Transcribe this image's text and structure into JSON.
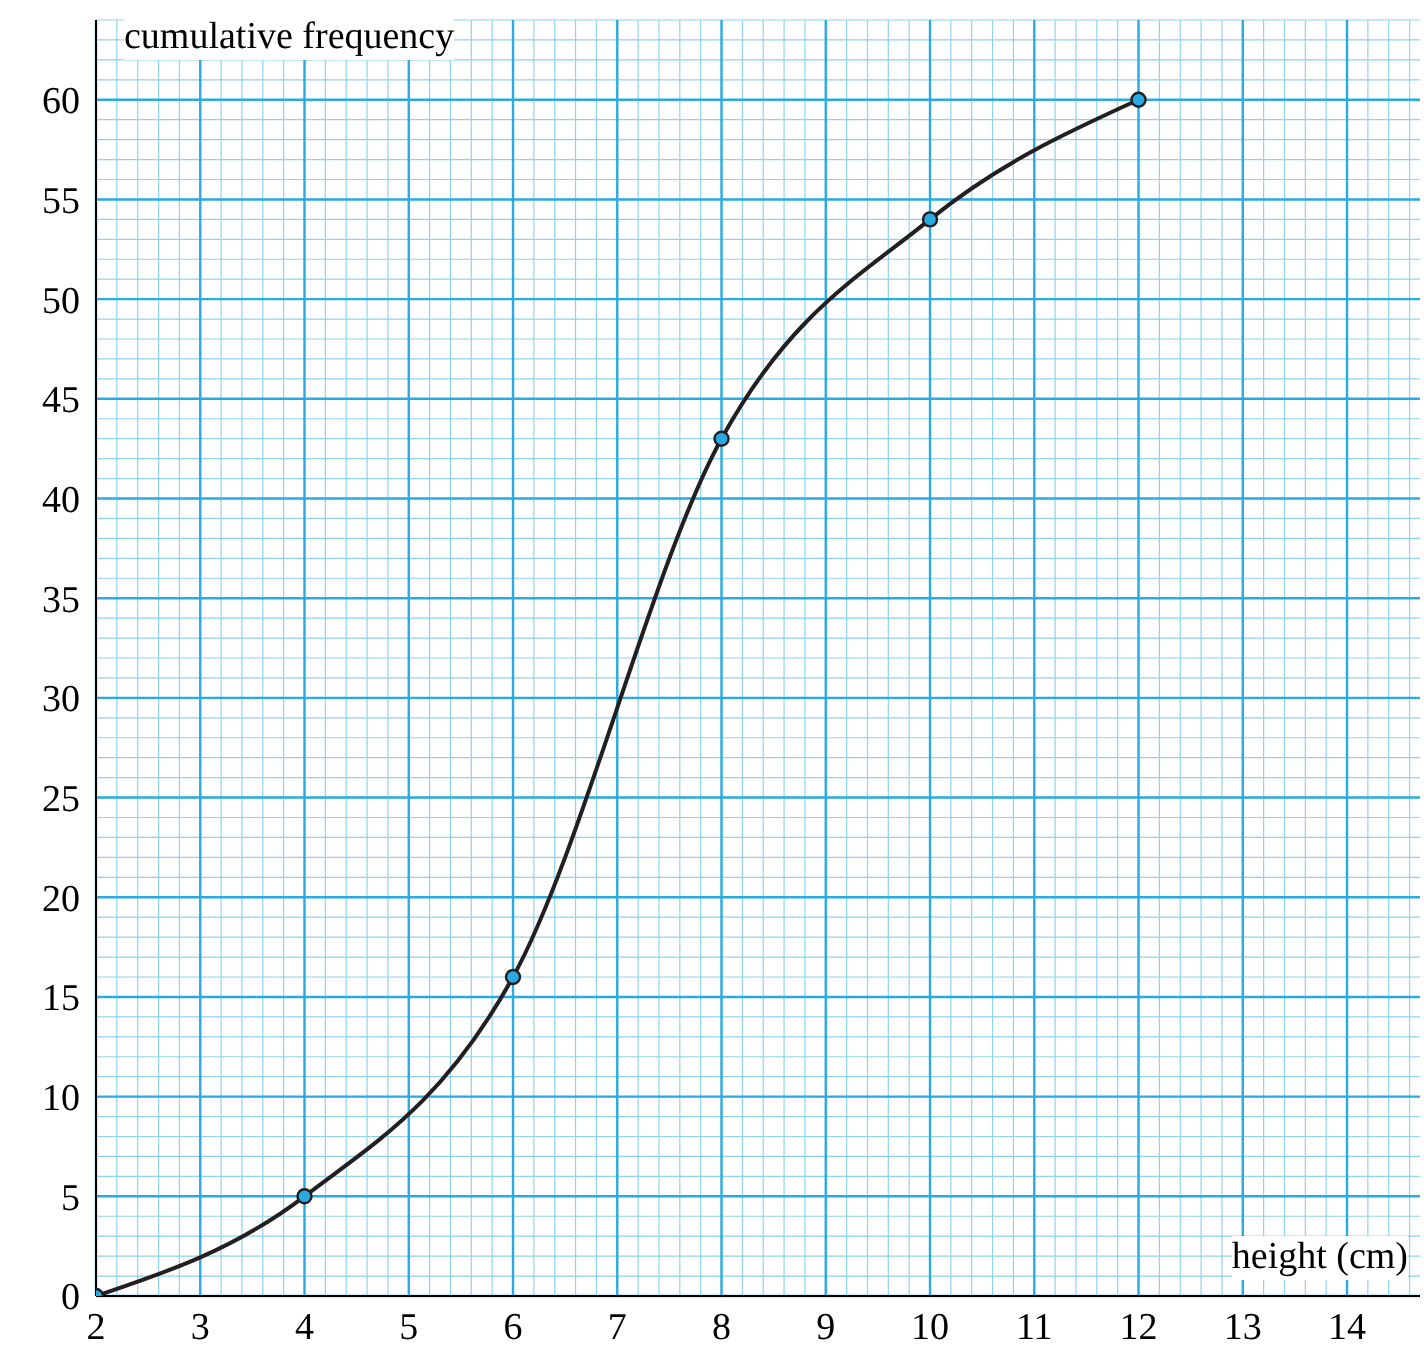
{
  "chart_data": {
    "type": "line",
    "xlabel": "height (cm)",
    "ylabel": "cumulative frequency",
    "x": [
      2,
      4,
      6,
      8,
      10,
      12
    ],
    "series": [
      {
        "color": "#231f20",
        "values": [
          0,
          5,
          16,
          43,
          54,
          60
        ]
      }
    ],
    "xlim": [
      2,
      14.7
    ],
    "ylim": [
      0,
      64
    ],
    "xticks": [
      2,
      3,
      4,
      5,
      6,
      7,
      8,
      9,
      10,
      11,
      12,
      13,
      14
    ],
    "yticks": [
      0,
      5,
      10,
      15,
      20,
      25,
      30,
      35,
      40,
      45,
      50,
      55,
      60
    ],
    "grid": true,
    "marker": "circle",
    "line_style": "solid"
  }
}
